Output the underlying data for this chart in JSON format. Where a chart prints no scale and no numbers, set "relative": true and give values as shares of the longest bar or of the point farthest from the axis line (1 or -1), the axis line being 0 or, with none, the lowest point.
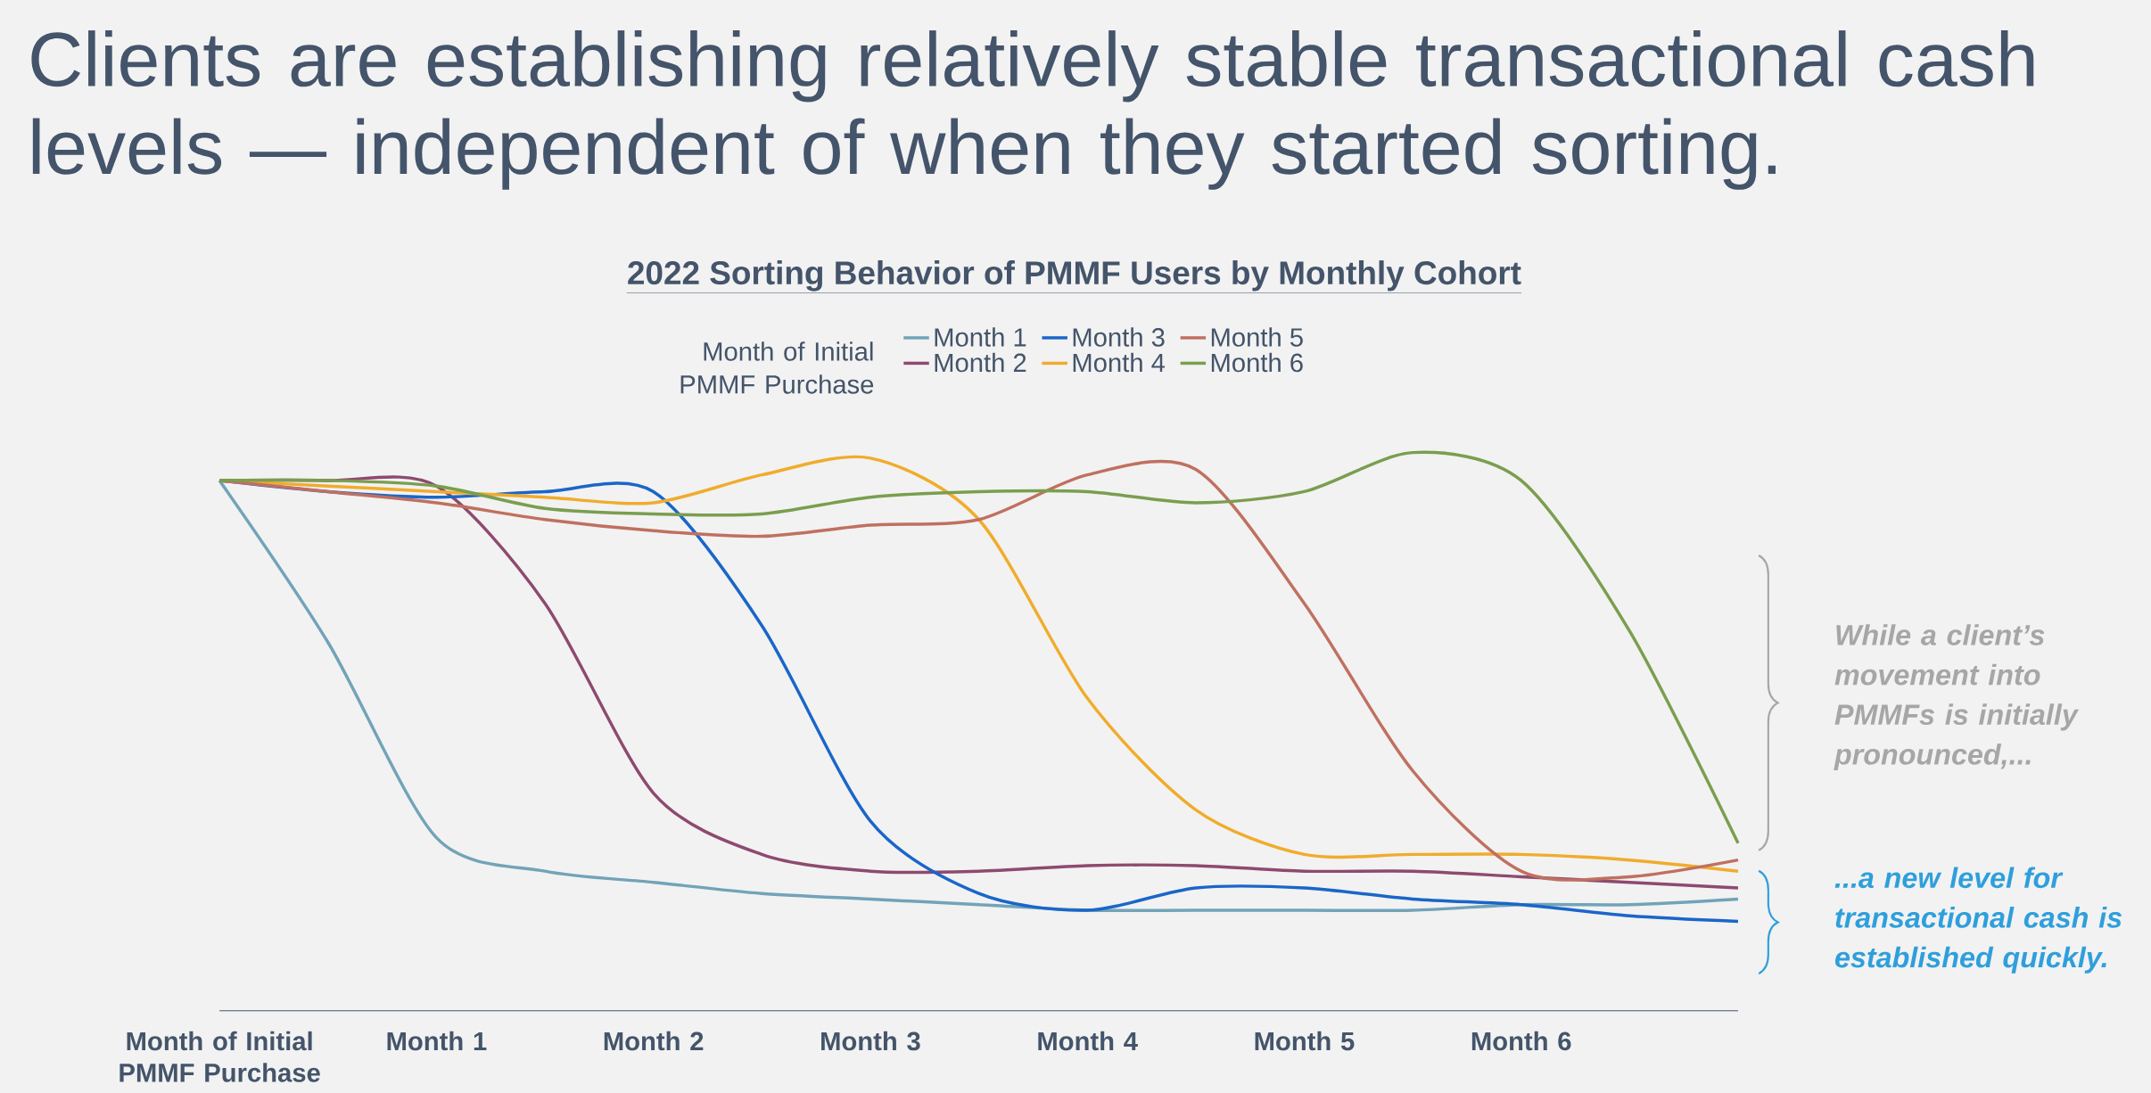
{
  "chart_data": {
    "type": "line",
    "title": "Clients are establishing relatively stable transactional cash levels — independent of when they started sorting.",
    "subtitle": "2022 Sorting Behavior of PMMF Users by Monthly Cohort",
    "legend_title": "Month of Initial PMMF Purchase",
    "legend": "top",
    "relative": true,
    "marker": "none",
    "categories": [
      "Month of Initial PMMF Purchase",
      null,
      "Month 1",
      null,
      "Month 2",
      null,
      "Month 3",
      null,
      "Month 4",
      null,
      "Month 5",
      null,
      "Month 6",
      null,
      null
    ],
    "series": [
      {
        "name": "Month 1",
        "color": "#72a3b8",
        "values": [
          0.95,
          0.66,
          0.31,
          0.25,
          0.23,
          0.21,
          0.2,
          0.19,
          0.18,
          0.18,
          0.18,
          0.18,
          0.19,
          0.19,
          0.2
        ]
      },
      {
        "name": "Month 2",
        "color": "#8e4a6e",
        "values": [
          0.95,
          0.95,
          0.94,
          0.73,
          0.39,
          0.28,
          0.25,
          0.25,
          0.26,
          0.26,
          0.25,
          0.25,
          0.24,
          0.23,
          0.22
        ]
      },
      {
        "name": "Month 3",
        "color": "#1a66c9",
        "values": [
          0.95,
          0.93,
          0.92,
          0.93,
          0.93,
          0.69,
          0.34,
          0.21,
          0.18,
          0.22,
          0.22,
          0.2,
          0.19,
          0.17,
          0.16
        ]
      },
      {
        "name": "Month 4",
        "color": "#f0ac2c",
        "values": [
          0.95,
          0.94,
          0.93,
          0.92,
          0.91,
          0.96,
          0.99,
          0.88,
          0.56,
          0.36,
          0.28,
          0.28,
          0.28,
          0.27,
          0.25
        ]
      },
      {
        "name": "Month 5",
        "color": "#c07060",
        "values": [
          0.95,
          0.93,
          0.91,
          0.88,
          0.86,
          0.85,
          0.87,
          0.88,
          0.96,
          0.97,
          0.73,
          0.43,
          0.25,
          0.24,
          0.27
        ]
      },
      {
        "name": "Month 6",
        "color": "#7a9e4e",
        "values": [
          0.95,
          0.95,
          0.94,
          0.9,
          0.89,
          0.89,
          0.92,
          0.93,
          0.93,
          0.91,
          0.93,
          1.0,
          0.95,
          0.68,
          0.3
        ]
      }
    ],
    "annotations": [
      "While a client’s movement into PMMFs is initially pronounced,...",
      "...a new level for transactional cash is established quickly."
    ]
  }
}
